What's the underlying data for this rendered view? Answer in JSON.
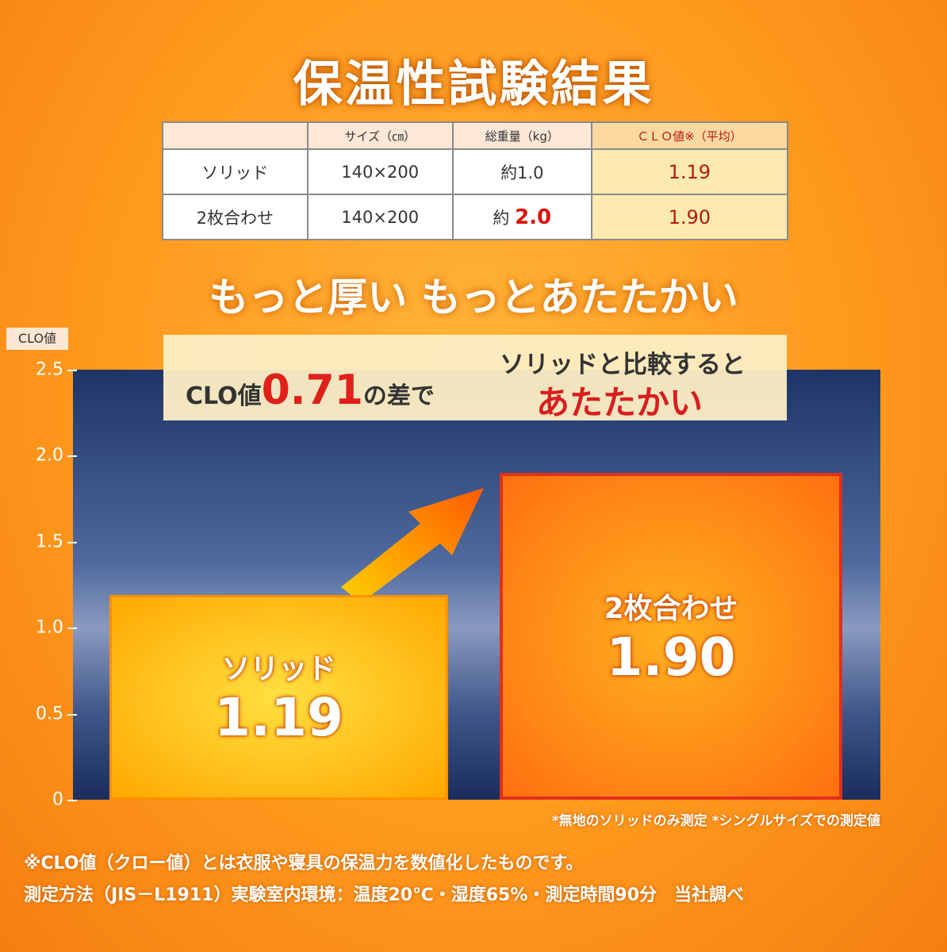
{
  "title": "保温性試験結果",
  "table": {
    "headers": [
      "",
      "サイズ（㎝）",
      "総重量（kg）",
      "ＣＬＯ値※（平均）"
    ],
    "rows": [
      [
        "ソリッド",
        "140×200",
        "約1.0",
        "1.19"
      ],
      [
        "2枚合わせ",
        "140×200",
        "約",
        "1.90"
      ]
    ],
    "highlight_weight": "2.0"
  },
  "slogan": "もっと厚い もっとあたたかい",
  "callout": {
    "prefix": "CLO値",
    "diff": "0.71",
    "suffix": "の差で",
    "line1": "ソリッドと比較すると",
    "line2": "あたたかい"
  },
  "chart_data": {
    "type": "bar",
    "ylabel": "CLO値",
    "ylim": [
      0,
      2.5
    ],
    "yticks": [
      "0",
      "0.5",
      "1.0",
      "1.5",
      "2.0",
      "2.5"
    ],
    "categories": [
      "ソリッド",
      "2枚合わせ"
    ],
    "values": [
      1.19,
      1.9
    ],
    "value_labels": [
      "1.19",
      "1.90"
    ],
    "colors": {
      "solid": "#ffb000",
      "double": "#ff7a10",
      "double_border": "#e0301c",
      "background": "#1e3466"
    }
  },
  "notes": {
    "chart": "*無地のソリッドのみ測定 *シングルサイズでの測定値",
    "line1": "※CLO値（クロー値）とは衣服や寝具の保温力を数値化したものです。",
    "line2": "測定方法（JIS－L1911）実験室内環境：温度20℃・湿度65%・測定時間90分　当社調べ"
  }
}
